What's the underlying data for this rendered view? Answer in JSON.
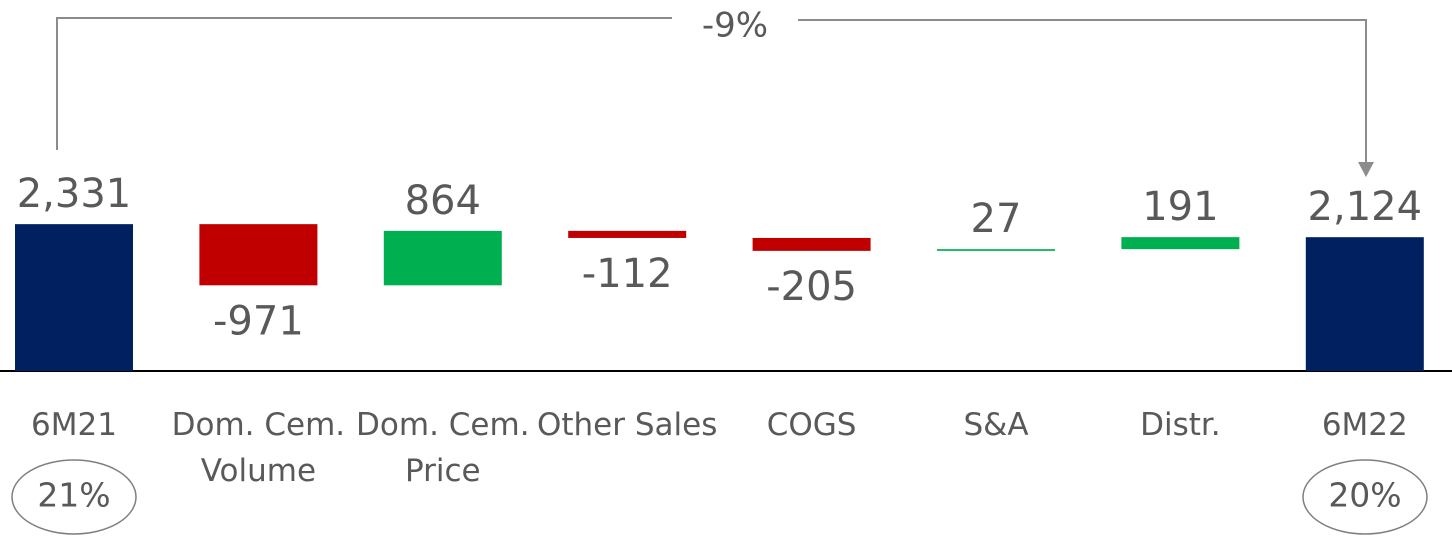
{
  "chart_data": {
    "type": "waterfall",
    "categories": [
      "6M21",
      "Dom. Cem. Volume",
      "Dom. Cem. Price",
      "Other Sales",
      "COGS",
      "S&A",
      "Distr.",
      "6M22"
    ],
    "values": [
      2331,
      -971,
      864,
      -112,
      -205,
      27,
      191,
      2124
    ],
    "value_labels": [
      "2,331",
      "-971",
      "864",
      "-112",
      "-205",
      "27",
      "191",
      "2,124"
    ],
    "colors": {
      "total": "#002060",
      "increase": "#00b050",
      "decrease": "#c00000"
    },
    "annotations": {
      "change": "-9%",
      "start_margin": "21%",
      "end_margin": "20%"
    }
  }
}
